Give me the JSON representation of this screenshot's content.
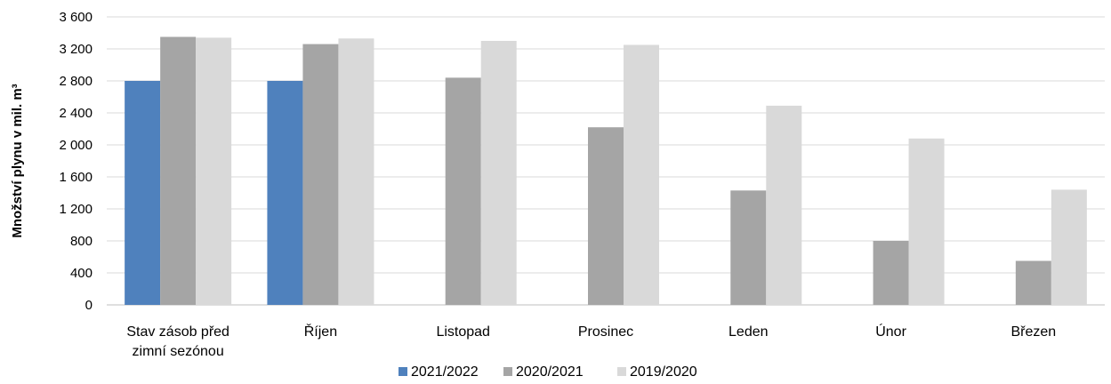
{
  "chart_data": {
    "type": "bar",
    "title": "",
    "xlabel": "",
    "ylabel": "Množství plynu v mil. m³",
    "ylim": [
      0,
      3600
    ],
    "yticks": [
      0,
      400,
      800,
      1200,
      1600,
      2000,
      2400,
      2800,
      3200,
      3600
    ],
    "ytick_labels": [
      "0",
      "400",
      "800",
      "1 200",
      "1 600",
      "2 000",
      "2 400",
      "2 800",
      "3 200",
      "3 600"
    ],
    "categories": [
      "Stav zásob před zimní sezónou",
      "Říjen",
      "Listopad",
      "Prosinec",
      "Leden",
      "Únor",
      "Březen"
    ],
    "category_lines": [
      [
        "Stav zásob před",
        "zimní sezónou"
      ],
      [
        "Říjen"
      ],
      [
        "Listopad"
      ],
      [
        "Prosinec"
      ],
      [
        "Leden"
      ],
      [
        "Únor"
      ],
      [
        "Březen"
      ]
    ],
    "series": [
      {
        "name": "2021/2022",
        "color": "#4f81bd",
        "values": [
          2800,
          2800,
          null,
          null,
          null,
          null,
          null
        ]
      },
      {
        "name": "2020/2021",
        "color": "#a5a5a5",
        "values": [
          3350,
          3260,
          2840,
          2220,
          1430,
          800,
          550
        ]
      },
      {
        "name": "2019/2020",
        "color": "#d9d9d9",
        "values": [
          3340,
          3330,
          3300,
          3250,
          2490,
          2080,
          1440
        ]
      }
    ],
    "grid": true,
    "legend_position": "bottom"
  }
}
